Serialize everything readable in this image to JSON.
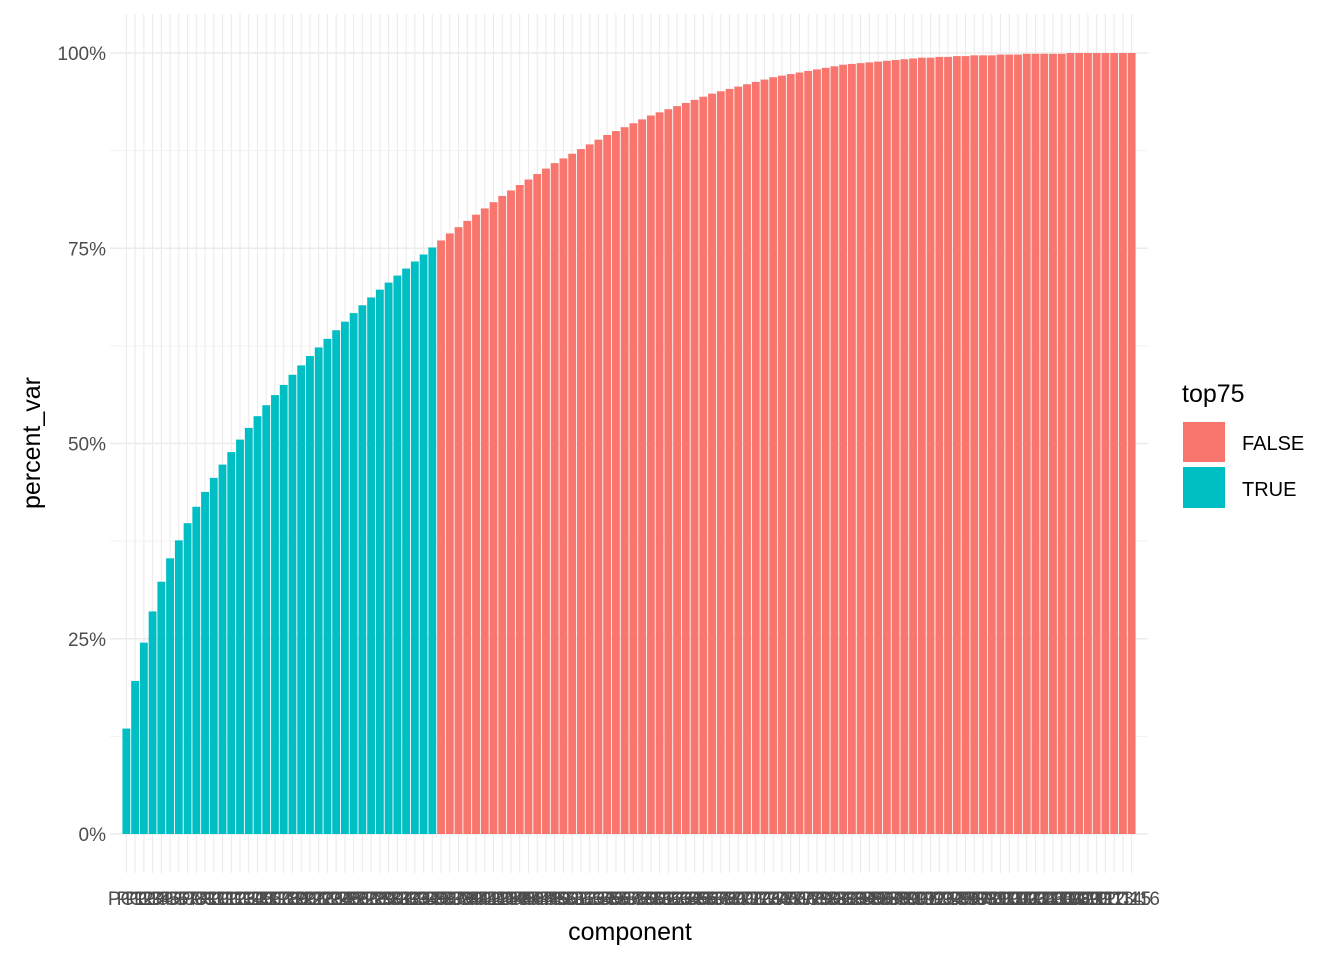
{
  "chart_data": {
    "type": "bar",
    "xlabel": "component",
    "ylabel": "percent_var",
    "ylim": [
      0,
      1
    ],
    "y_ticks": [
      "0%",
      "25%",
      "50%",
      "75%",
      "100%"
    ],
    "y_tick_values": [
      0,
      0.25,
      0.5,
      0.75,
      1.0
    ],
    "n_components": 116,
    "x_tick_labels": [
      "PC1",
      "PC2",
      "PC3",
      "PC4",
      "PC5",
      "PC6",
      "PC7",
      "PC8",
      "PC9",
      "PC10",
      "PC11",
      "PC12",
      "PC13",
      "PC14",
      "PC15",
      "PC16",
      "PC17",
      "PC18",
      "PC19",
      "PC20",
      "PC21",
      "PC22",
      "PC23",
      "PC24",
      "PC25",
      "PC26",
      "PC27",
      "PC28",
      "PC29",
      "PC30",
      "PC31",
      "PC32",
      "PC33",
      "PC34",
      "PC35",
      "PC36",
      "PC37",
      "PC38",
      "PC39",
      "PC40",
      "PC41",
      "PC42",
      "PC43",
      "PC44",
      "PC45",
      "PC46",
      "PC47",
      "PC48",
      "PC49",
      "PC50",
      "PC51",
      "PC52",
      "PC53",
      "PC54",
      "PC55",
      "PC56",
      "PC57",
      "PC58",
      "PC59",
      "PC60",
      "PC61",
      "PC62",
      "PC63",
      "PC64",
      "PC65",
      "PC66",
      "PC67",
      "PC68",
      "PC69",
      "PC70",
      "PC71",
      "PC72",
      "PC73",
      "PC74",
      "PC75",
      "PC76",
      "PC77",
      "PC78",
      "PC79",
      "PC80",
      "PC81",
      "PC82",
      "PC83",
      "PC84",
      "PC85",
      "PC86",
      "PC87",
      "PC88",
      "PC89",
      "PC90",
      "PC91",
      "PC92",
      "PC93",
      "PC94",
      "PC95",
      "PC96",
      "PC97",
      "PC98",
      "PC99",
      "PC100",
      "PC101",
      "PC102",
      "PC103",
      "PC104",
      "PC105",
      "PC106",
      "PC107",
      "PC108",
      "PC109",
      "PC110",
      "PC111",
      "PC112",
      "PC113",
      "PC114",
      "PC115",
      "PC116"
    ],
    "values": [
      0.135,
      0.196,
      0.245,
      0.285,
      0.323,
      0.353,
      0.376,
      0.398,
      0.419,
      0.438,
      0.456,
      0.473,
      0.489,
      0.505,
      0.52,
      0.535,
      0.549,
      0.562,
      0.575,
      0.588,
      0.6,
      0.612,
      0.623,
      0.634,
      0.645,
      0.656,
      0.667,
      0.677,
      0.687,
      0.697,
      0.706,
      0.715,
      0.724,
      0.733,
      0.742,
      0.751,
      0.76,
      0.769,
      0.777,
      0.785,
      0.793,
      0.801,
      0.809,
      0.817,
      0.824,
      0.831,
      0.838,
      0.845,
      0.852,
      0.859,
      0.865,
      0.871,
      0.877,
      0.883,
      0.889,
      0.895,
      0.9,
      0.905,
      0.91,
      0.915,
      0.92,
      0.924,
      0.928,
      0.932,
      0.936,
      0.94,
      0.944,
      0.948,
      0.951,
      0.954,
      0.957,
      0.96,
      0.963,
      0.966,
      0.969,
      0.971,
      0.973,
      0.975,
      0.977,
      0.979,
      0.981,
      0.983,
      0.985,
      0.986,
      0.987,
      0.988,
      0.989,
      0.99,
      0.991,
      0.992,
      0.993,
      0.994,
      0.994,
      0.995,
      0.995,
      0.996,
      0.996,
      0.997,
      0.997,
      0.997,
      0.998,
      0.998,
      0.998,
      0.999,
      0.999,
      0.999,
      0.999,
      0.999,
      1.0,
      1.0,
      1.0,
      1.0,
      1.0,
      1.0,
      1.0,
      1.0
    ],
    "group": [
      "TRUE",
      "TRUE",
      "TRUE",
      "TRUE",
      "TRUE",
      "TRUE",
      "TRUE",
      "TRUE",
      "TRUE",
      "TRUE",
      "TRUE",
      "TRUE",
      "TRUE",
      "TRUE",
      "TRUE",
      "TRUE",
      "TRUE",
      "TRUE",
      "TRUE",
      "TRUE",
      "TRUE",
      "TRUE",
      "TRUE",
      "TRUE",
      "TRUE",
      "TRUE",
      "TRUE",
      "TRUE",
      "TRUE",
      "TRUE",
      "TRUE",
      "TRUE",
      "TRUE",
      "TRUE",
      "TRUE",
      "TRUE",
      "FALSE",
      "FALSE",
      "FALSE",
      "FALSE",
      "FALSE",
      "FALSE",
      "FALSE",
      "FALSE",
      "FALSE",
      "FALSE",
      "FALSE",
      "FALSE",
      "FALSE",
      "FALSE",
      "FALSE",
      "FALSE",
      "FALSE",
      "FALSE",
      "FALSE",
      "FALSE",
      "FALSE",
      "FALSE",
      "FALSE",
      "FALSE",
      "FALSE",
      "FALSE",
      "FALSE",
      "FALSE",
      "FALSE",
      "FALSE",
      "FALSE",
      "FALSE",
      "FALSE",
      "FALSE",
      "FALSE",
      "FALSE",
      "FALSE",
      "FALSE",
      "FALSE",
      "FALSE",
      "FALSE",
      "FALSE",
      "FALSE",
      "FALSE",
      "FALSE",
      "FALSE",
      "FALSE",
      "FALSE",
      "FALSE",
      "FALSE",
      "FALSE",
      "FALSE",
      "FALSE",
      "FALSE",
      "FALSE",
      "FALSE",
      "FALSE",
      "FALSE",
      "FALSE",
      "FALSE",
      "FALSE",
      "FALSE",
      "FALSE",
      "FALSE",
      "FALSE",
      "FALSE",
      "FALSE",
      "FALSE",
      "FALSE",
      "FALSE",
      "FALSE",
      "FALSE",
      "FALSE",
      "FALSE",
      "FALSE",
      "FALSE",
      "FALSE",
      "FALSE",
      "FALSE",
      "FALSE"
    ],
    "legend": {
      "title": "top75",
      "entries": [
        {
          "label": "FALSE",
          "color": "#F8766D"
        },
        {
          "label": "TRUE",
          "color": "#00BFC4"
        }
      ],
      "placement": "right"
    },
    "grid": true
  }
}
